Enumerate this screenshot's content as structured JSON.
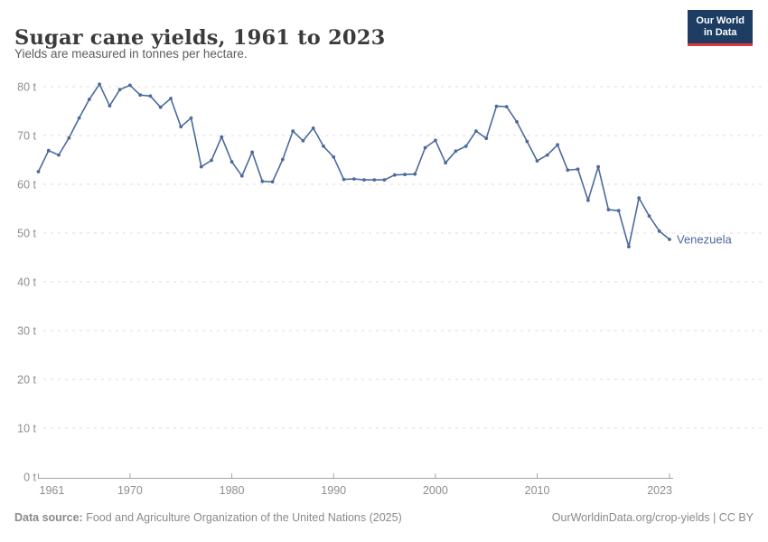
{
  "header": {
    "title": "Sugar cane yields, 1961 to 2023",
    "subtitle": "Yields are measured in tonnes per hectare.",
    "logo": {
      "line1": "Our World",
      "line2": "in Data"
    }
  },
  "chart_data": {
    "type": "line",
    "title": "Sugar cane yields, 1961 to 2023",
    "ylabel": "tonnes per hectare",
    "xlabel": "",
    "ylim": [
      0,
      80
    ],
    "ytick_step": 10,
    "ytick_suffix": " t",
    "xticks": [
      1961,
      1970,
      1980,
      1990,
      2000,
      2010,
      2023
    ],
    "grid": "horizontal-dashed",
    "legend_position": "end-of-line-label",
    "x": [
      1961,
      1962,
      1963,
      1964,
      1965,
      1966,
      1967,
      1968,
      1969,
      1970,
      1971,
      1972,
      1973,
      1974,
      1975,
      1976,
      1977,
      1978,
      1979,
      1980,
      1981,
      1982,
      1983,
      1984,
      1985,
      1986,
      1987,
      1988,
      1989,
      1990,
      1991,
      1992,
      1993,
      1994,
      1995,
      1996,
      1997,
      1998,
      1999,
      2000,
      2001,
      2002,
      2003,
      2004,
      2005,
      2006,
      2007,
      2008,
      2009,
      2010,
      2011,
      2012,
      2013,
      2014,
      2015,
      2016,
      2017,
      2018,
      2019,
      2020,
      2021,
      2022,
      2023
    ],
    "series": [
      {
        "name": "Venezuela",
        "color": "#4c6a9c",
        "values": [
          62.6,
          66.9,
          66.0,
          69.5,
          73.6,
          77.4,
          80.5,
          76.1,
          79.4,
          80.3,
          78.3,
          78.1,
          75.8,
          77.6,
          71.8,
          73.6,
          63.6,
          64.9,
          69.7,
          64.6,
          61.7,
          66.6,
          60.6,
          60.5,
          65.1,
          70.9,
          68.9,
          71.5,
          67.8,
          65.6,
          61.0,
          61.1,
          60.9,
          60.9,
          60.9,
          61.9,
          62.0,
          62.1,
          67.5,
          69.0,
          64.4,
          66.8,
          67.8,
          70.9,
          69.4,
          76.0,
          75.9,
          72.8,
          68.8,
          64.8,
          66.0,
          68.1,
          62.9,
          63.1,
          56.7,
          63.6,
          54.8,
          54.6,
          47.2,
          57.2,
          53.5,
          50.4,
          48.7
        ]
      }
    ]
  },
  "colors": {
    "line": "#4c6a9c",
    "grid": "#dedede",
    "axis": "#a3a3a3",
    "tick_text": "#8e8e8e",
    "logo_bg": "#1d3d63",
    "logo_accent": "#e0373e"
  },
  "footer": {
    "source_label": "Data source:",
    "source_text": "Food and Agriculture Organization of the United Nations (2025)",
    "credit": "OurWorldinData.org/crop-yields | CC BY"
  }
}
